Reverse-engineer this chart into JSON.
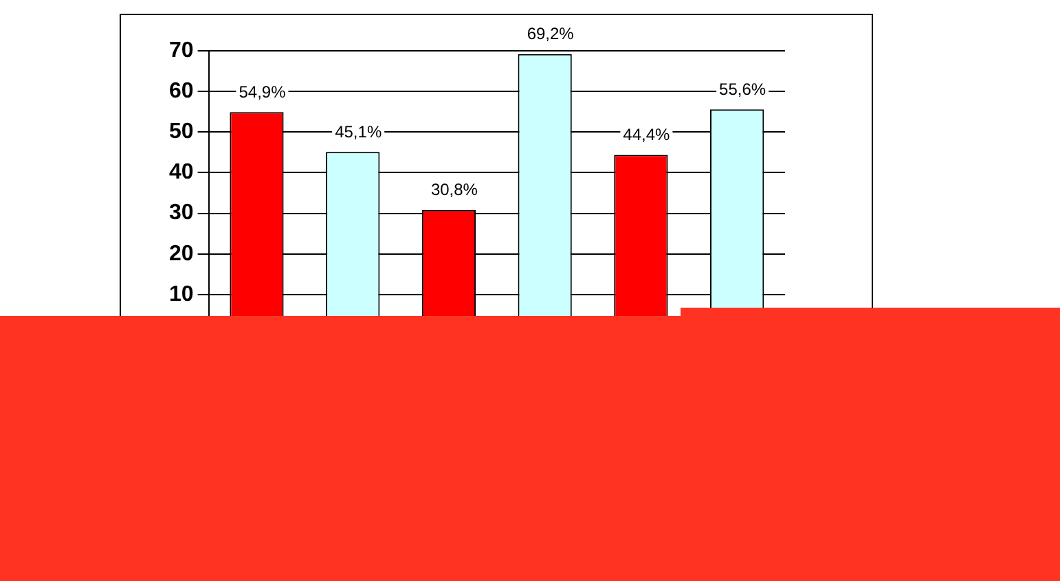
{
  "chart_data": {
    "type": "bar",
    "categories": [
      null,
      null,
      null
    ],
    "series": [
      {
        "color": "#ff0000",
        "values": [
          54.9,
          30.8,
          44.4
        ],
        "value_labels": [
          "54,9%",
          "30,8%",
          "44,4%"
        ]
      },
      {
        "color": "#ccffff",
        "values": [
          45.1,
          69.2,
          55.6
        ],
        "value_labels": [
          "45,1%",
          "69,2%",
          "55,6%"
        ]
      }
    ],
    "ylim": [
      0,
      70
    ],
    "yticks": [
      10,
      20,
      30,
      40,
      50,
      60,
      70
    ],
    "grid": "y",
    "legend": false,
    "tick_labels": "y"
  }
}
